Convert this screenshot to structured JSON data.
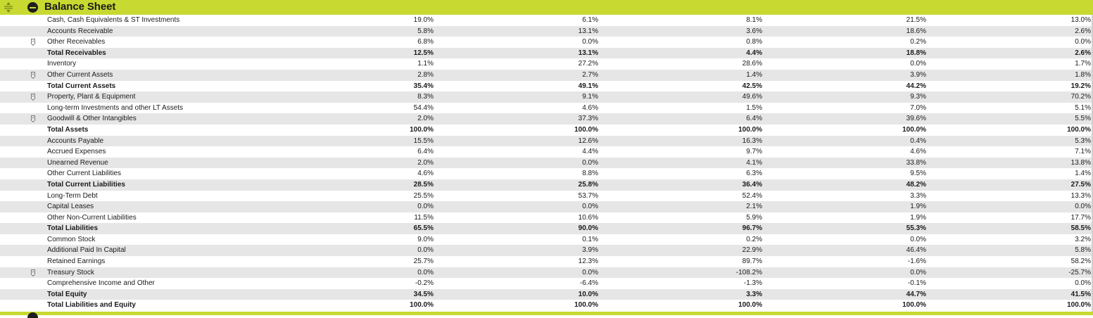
{
  "section": {
    "title": "Balance Sheet"
  },
  "rows": [
    {
      "label": "Cash, Cash Equivalents & ST Investments",
      "bold": false,
      "icon": false,
      "values": [
        "19.0%",
        "6.1%",
        "8.1%",
        "21.5%",
        "13.0%"
      ]
    },
    {
      "label": "Accounts Receivable",
      "bold": false,
      "icon": false,
      "values": [
        "5.8%",
        "13.1%",
        "3.6%",
        "18.6%",
        "2.6%"
      ]
    },
    {
      "label": "Other Receivables",
      "bold": false,
      "icon": true,
      "values": [
        "6.8%",
        "0.0%",
        "0.8%",
        "0.2%",
        "0.0%"
      ]
    },
    {
      "label": "Total Receivables",
      "bold": true,
      "icon": false,
      "values": [
        "12.5%",
        "13.1%",
        "4.4%",
        "18.8%",
        "2.6%"
      ]
    },
    {
      "label": "Inventory",
      "bold": false,
      "icon": false,
      "values": [
        "1.1%",
        "27.2%",
        "28.6%",
        "0.0%",
        "1.7%"
      ]
    },
    {
      "label": "Other Current Assets",
      "bold": false,
      "icon": true,
      "values": [
        "2.8%",
        "2.7%",
        "1.4%",
        "3.9%",
        "1.8%"
      ]
    },
    {
      "label": "Total Current Assets",
      "bold": true,
      "icon": false,
      "values": [
        "35.4%",
        "49.1%",
        "42.5%",
        "44.2%",
        "19.2%"
      ]
    },
    {
      "label": "Property, Plant & Equipment",
      "bold": false,
      "icon": true,
      "values": [
        "8.3%",
        "9.1%",
        "49.6%",
        "9.3%",
        "70.2%"
      ]
    },
    {
      "label": "Long-term Investments and other LT Assets",
      "bold": false,
      "icon": false,
      "values": [
        "54.4%",
        "4.6%",
        "1.5%",
        "7.0%",
        "5.1%"
      ]
    },
    {
      "label": "Goodwill & Other Intangibles",
      "bold": false,
      "icon": true,
      "values": [
        "2.0%",
        "37.3%",
        "6.4%",
        "39.6%",
        "5.5%"
      ]
    },
    {
      "label": "Total Assets",
      "bold": true,
      "icon": false,
      "values": [
        "100.0%",
        "100.0%",
        "100.0%",
        "100.0%",
        "100.0%"
      ]
    },
    {
      "label": "Accounts Payable",
      "bold": false,
      "icon": false,
      "values": [
        "15.5%",
        "12.6%",
        "16.3%",
        "0.4%",
        "5.3%"
      ]
    },
    {
      "label": "Accrued Expenses",
      "bold": false,
      "icon": false,
      "values": [
        "6.4%",
        "4.4%",
        "9.7%",
        "4.6%",
        "7.1%"
      ]
    },
    {
      "label": "Unearned Revenue",
      "bold": false,
      "icon": false,
      "values": [
        "2.0%",
        "0.0%",
        "4.1%",
        "33.8%",
        "13.8%"
      ]
    },
    {
      "label": "Other Current Liabilities",
      "bold": false,
      "icon": false,
      "values": [
        "4.6%",
        "8.8%",
        "6.3%",
        "9.5%",
        "1.4%"
      ]
    },
    {
      "label": "Total Current Liabilities",
      "bold": true,
      "icon": false,
      "values": [
        "28.5%",
        "25.8%",
        "36.4%",
        "48.2%",
        "27.5%"
      ]
    },
    {
      "label": "Long-Term Debt",
      "bold": false,
      "icon": false,
      "values": [
        "25.5%",
        "53.7%",
        "52.4%",
        "3.3%",
        "13.3%"
      ]
    },
    {
      "label": "Capital Leases",
      "bold": false,
      "icon": false,
      "values": [
        "0.0%",
        "0.0%",
        "2.1%",
        "1.9%",
        "0.0%"
      ]
    },
    {
      "label": "Other Non-Current Liabilities",
      "bold": false,
      "icon": false,
      "values": [
        "11.5%",
        "10.6%",
        "5.9%",
        "1.9%",
        "17.7%"
      ]
    },
    {
      "label": "Total Liabilities",
      "bold": true,
      "icon": false,
      "values": [
        "65.5%",
        "90.0%",
        "96.7%",
        "55.3%",
        "58.5%"
      ]
    },
    {
      "label": "Common Stock",
      "bold": false,
      "icon": false,
      "values": [
        "9.0%",
        "0.1%",
        "0.2%",
        "0.0%",
        "3.2%"
      ]
    },
    {
      "label": "Additional Paid In Capital",
      "bold": false,
      "icon": false,
      "values": [
        "0.0%",
        "3.9%",
        "22.9%",
        "46.4%",
        "5.8%"
      ]
    },
    {
      "label": "Retained Earnings",
      "bold": false,
      "icon": false,
      "values": [
        "25.7%",
        "12.3%",
        "89.7%",
        "-1.6%",
        "58.2%"
      ]
    },
    {
      "label": "Treasury Stock",
      "bold": false,
      "icon": true,
      "values": [
        "0.0%",
        "0.0%",
        "-108.2%",
        "0.0%",
        "-25.7%"
      ]
    },
    {
      "label": "Comprehensive Income and Other",
      "bold": false,
      "icon": false,
      "values": [
        "-0.2%",
        "-6.4%",
        "-1.3%",
        "-0.1%",
        "0.0%"
      ]
    },
    {
      "label": "Total Equity",
      "bold": true,
      "icon": false,
      "values": [
        "34.5%",
        "10.0%",
        "3.3%",
        "44.7%",
        "41.5%"
      ]
    },
    {
      "label": "Total Liabilities and Equity",
      "bold": true,
      "icon": false,
      "values": [
        "100.0%",
        "100.0%",
        "100.0%",
        "100.0%",
        "100.0%"
      ]
    }
  ],
  "colors": {
    "accent": "#c8d931",
    "alt_row": "#e6e6e6"
  }
}
